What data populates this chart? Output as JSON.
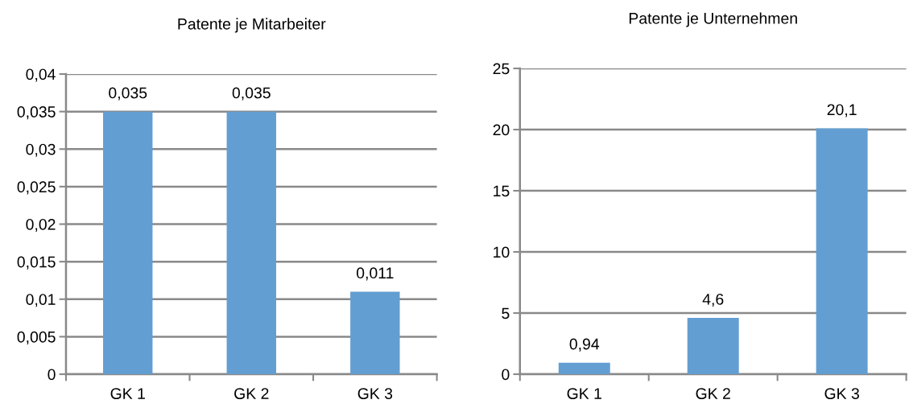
{
  "chart_data": [
    {
      "type": "bar",
      "title": "Patente je Mitarbeiter",
      "categories": [
        "GK 1",
        "GK 2",
        "GK 3"
      ],
      "values": [
        0.035,
        0.035,
        0.011
      ],
      "color": "#639ed2",
      "value_labels": [
        "0,035",
        "0,035",
        "0,011"
      ],
      "ylim": [
        0,
        0.04
      ],
      "yticks": [
        0,
        {
          "value": 0.005,
          "label": "0,005"
        },
        {
          "value": 0.01,
          "label": "0,01"
        },
        {
          "value": 0.015,
          "label": "0,015"
        },
        {
          "value": 0.02,
          "label": "0,02"
        },
        {
          "value": 0.025,
          "label": "0,025"
        },
        {
          "value": 0.03,
          "label": "0,03"
        },
        {
          "value": 0.035,
          "label": "0,035"
        },
        {
          "value": 0.04,
          "label": "0,04"
        }
      ],
      "grid": "y"
    },
    {
      "type": "bar",
      "title": "Patente je Unternehmen",
      "categories": [
        "GK 1",
        "GK 2",
        "GK 3"
      ],
      "values": [
        0.94,
        4.6,
        20.1
      ],
      "color": "#639ed2",
      "value_labels": [
        "0,94",
        "4,6",
        "20,1"
      ],
      "ylim": [
        0,
        25
      ],
      "yticks": [
        0,
        5,
        10,
        15,
        20,
        25
      ],
      "grid": "y"
    }
  ]
}
